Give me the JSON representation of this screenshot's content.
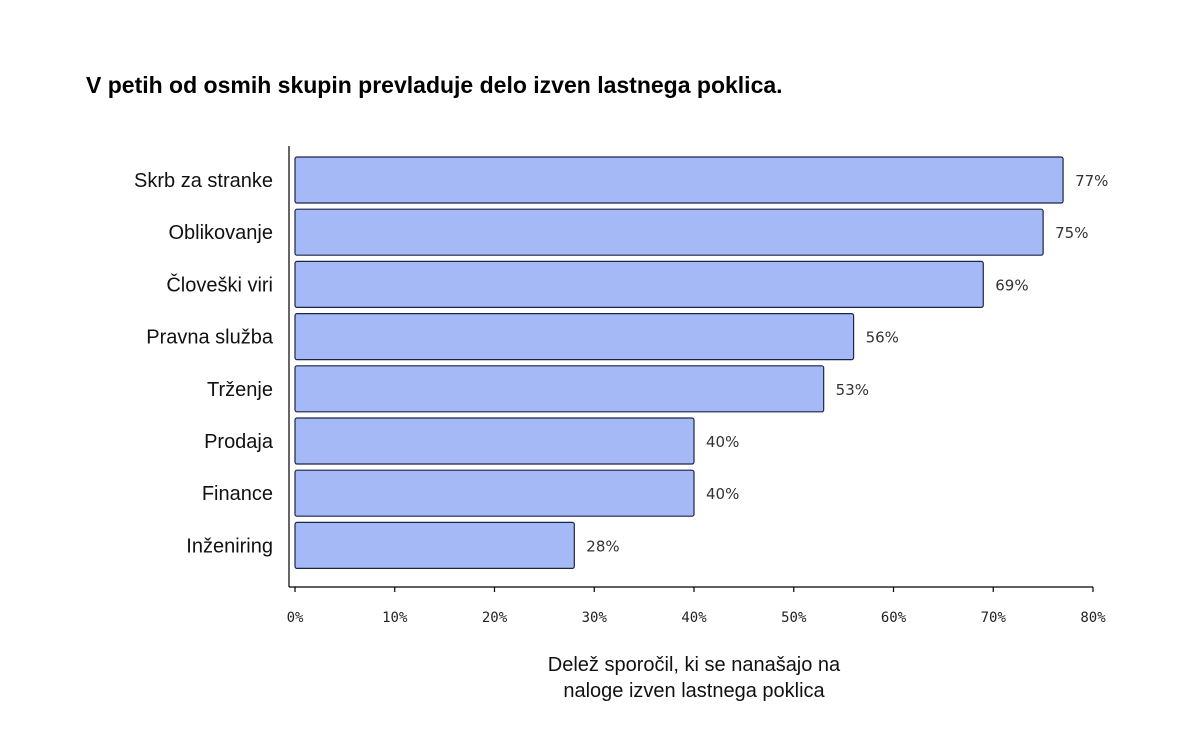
{
  "chart_data": {
    "type": "bar",
    "orientation": "horizontal",
    "title": "V petih od osmih skupin prevladuje delo izven lastnega poklica.",
    "categories": [
      "Skrb za stranke",
      "Oblikovanje",
      "Človeški viri",
      "Pravna služba",
      "Trženje",
      "Prodaja",
      "Finance",
      "Inženiring"
    ],
    "values": [
      77,
      75,
      69,
      56,
      53,
      40,
      40,
      28
    ],
    "value_labels": [
      "77%",
      "75%",
      "69%",
      "56%",
      "53%",
      "40%",
      "40%",
      "28%"
    ],
    "xlabel_lines": [
      "Delež sporočil, ki se nanašajo na",
      "naloge izven lastnega poklica"
    ],
    "ylabel": "",
    "xlim": [
      0,
      80
    ],
    "xticks": [
      0,
      10,
      20,
      30,
      40,
      50,
      60,
      70,
      80
    ],
    "xtick_labels": [
      "0%",
      "10%",
      "20%",
      "30%",
      "40%",
      "50%",
      "60%",
      "70%",
      "80%"
    ],
    "grid": false,
    "legend": "none",
    "bar_color": "#a4b9f6",
    "bar_edge_color": "#1c2547"
  }
}
